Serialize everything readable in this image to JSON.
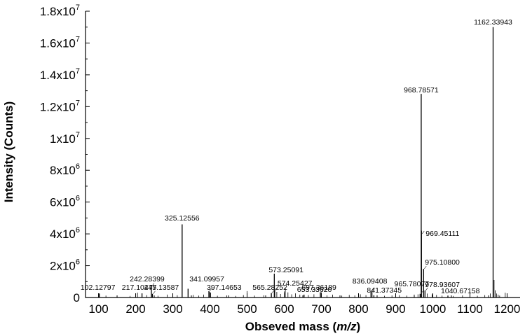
{
  "chart_data": {
    "type": "bar",
    "title": "",
    "xlabel_prefix": "Obseved mass (",
    "xlabel_italic": "m/z",
    "xlabel_suffix": ")",
    "ylabel": "Intensity (Counts)",
    "xlim": [
      65,
      1235
    ],
    "ylim": [
      0,
      18000000
    ],
    "x_ticks": [
      100,
      200,
      300,
      400,
      500,
      600,
      700,
      800,
      900,
      1000,
      1100,
      1200
    ],
    "y_ticks": [
      {
        "value": 0,
        "mantissa": "0",
        "exp": ""
      },
      {
        "value": 2000000,
        "mantissa": "2x10",
        "exp": "6"
      },
      {
        "value": 4000000,
        "mantissa": "4x10",
        "exp": "6"
      },
      {
        "value": 6000000,
        "mantissa": "6x10",
        "exp": "6"
      },
      {
        "value": 8000000,
        "mantissa": "8x10",
        "exp": "6"
      },
      {
        "value": 10000000,
        "mantissa": "1x10",
        "exp": "7"
      },
      {
        "value": 12000000,
        "mantissa": "1.2x10",
        "exp": "7"
      },
      {
        "value": 14000000,
        "mantissa": "1.4x10",
        "exp": "7"
      },
      {
        "value": 16000000,
        "mantissa": "1.6x10",
        "exp": "7"
      },
      {
        "value": 18000000,
        "mantissa": "1.8x10",
        "exp": "7"
      }
    ],
    "peaks": [
      {
        "x": 102.12797,
        "y": 250000,
        "label": "102.12797"
      },
      {
        "x": 217.10477,
        "y": 260000,
        "label": "217.10477"
      },
      {
        "x": 242.28399,
        "y": 720000,
        "label": "242.28399"
      },
      {
        "x": 245.13587,
        "y": 230000,
        "label": "245.13587"
      },
      {
        "x": 325.12556,
        "y": 4600000,
        "label": "325.12556"
      },
      {
        "x": 341.09957,
        "y": 550000,
        "label": "341.09957"
      },
      {
        "x": 397.14653,
        "y": 400000,
        "label": "397.14653"
      },
      {
        "x": 565.28252,
        "y": 280000,
        "label": "565.28252"
      },
      {
        "x": 573.25091,
        "y": 1500000,
        "label": "573.25091"
      },
      {
        "x": 574.25427,
        "y": 420000,
        "label": "574.25427"
      },
      {
        "x": 653.3362,
        "y": 180000,
        "label": "653.33620"
      },
      {
        "x": 697.36189,
        "y": 330000,
        "label": "697.36189"
      },
      {
        "x": 836.09408,
        "y": 430000,
        "label": "836.09408"
      },
      {
        "x": 841.37345,
        "y": 140000,
        "label": "841.37345"
      },
      {
        "x": 965.78077,
        "y": 230000,
        "label": "965.78077"
      },
      {
        "x": 968.78571,
        "y": 12800000,
        "label": "968.78571"
      },
      {
        "x": 969.45111,
        "y": 4200000,
        "label": "969.45111"
      },
      {
        "x": 975.108,
        "y": 1800000,
        "label": "975.10800"
      },
      {
        "x": 978.93607,
        "y": 440000,
        "label": "978.93607"
      },
      {
        "x": 1040.67158,
        "y": 120000,
        "label": "1040.67158"
      },
      {
        "x": 1162.33943,
        "y": 17000000,
        "label": "1162.33943"
      }
    ],
    "minor_peaks": [
      {
        "x": 120,
        "y": 120000
      },
      {
        "x": 150,
        "y": 90000
      },
      {
        "x": 185,
        "y": 100000
      },
      {
        "x": 205,
        "y": 300000
      },
      {
        "x": 230,
        "y": 150000
      },
      {
        "x": 260,
        "y": 110000
      },
      {
        "x": 285,
        "y": 180000
      },
      {
        "x": 300,
        "y": 250000
      },
      {
        "x": 312,
        "y": 140000
      },
      {
        "x": 355,
        "y": 160000
      },
      {
        "x": 370,
        "y": 120000
      },
      {
        "x": 383,
        "y": 180000
      },
      {
        "x": 400,
        "y": 350000
      },
      {
        "x": 402,
        "y": 300000
      },
      {
        "x": 420,
        "y": 110000
      },
      {
        "x": 445,
        "y": 130000
      },
      {
        "x": 470,
        "y": 100000
      },
      {
        "x": 490,
        "y": 150000
      },
      {
        "x": 500,
        "y": 400000
      },
      {
        "x": 520,
        "y": 120000
      },
      {
        "x": 545,
        "y": 140000
      },
      {
        "x": 580,
        "y": 350000
      },
      {
        "x": 590,
        "y": 220000
      },
      {
        "x": 600,
        "y": 380000
      },
      {
        "x": 603,
        "y": 600000
      },
      {
        "x": 610,
        "y": 320000
      },
      {
        "x": 620,
        "y": 200000
      },
      {
        "x": 630,
        "y": 260000
      },
      {
        "x": 642,
        "y": 180000
      },
      {
        "x": 665,
        "y": 150000
      },
      {
        "x": 680,
        "y": 200000
      },
      {
        "x": 700,
        "y": 300000
      },
      {
        "x": 715,
        "y": 140000
      },
      {
        "x": 730,
        "y": 180000
      },
      {
        "x": 755,
        "y": 120000
      },
      {
        "x": 775,
        "y": 160000
      },
      {
        "x": 790,
        "y": 130000
      },
      {
        "x": 805,
        "y": 200000
      },
      {
        "x": 820,
        "y": 150000
      },
      {
        "x": 833,
        "y": 350000
      },
      {
        "x": 850,
        "y": 140000
      },
      {
        "x": 870,
        "y": 110000
      },
      {
        "x": 890,
        "y": 130000
      },
      {
        "x": 910,
        "y": 150000
      },
      {
        "x": 930,
        "y": 120000
      },
      {
        "x": 950,
        "y": 180000
      },
      {
        "x": 960,
        "y": 200000
      },
      {
        "x": 985,
        "y": 250000
      },
      {
        "x": 998,
        "y": 200000
      },
      {
        "x": 1010,
        "y": 160000
      },
      {
        "x": 1025,
        "y": 120000
      },
      {
        "x": 1055,
        "y": 100000
      },
      {
        "x": 1080,
        "y": 130000
      },
      {
        "x": 1100,
        "y": 180000
      },
      {
        "x": 1120,
        "y": 110000
      },
      {
        "x": 1140,
        "y": 150000
      },
      {
        "x": 1155,
        "y": 250000
      },
      {
        "x": 1165,
        "y": 1100000
      },
      {
        "x": 1168,
        "y": 450000
      },
      {
        "x": 1172,
        "y": 250000
      },
      {
        "x": 1176,
        "y": 180000
      },
      {
        "x": 1180,
        "y": 120000
      },
      {
        "x": 1195,
        "y": 300000
      },
      {
        "x": 1200,
        "y": 100000
      }
    ]
  }
}
